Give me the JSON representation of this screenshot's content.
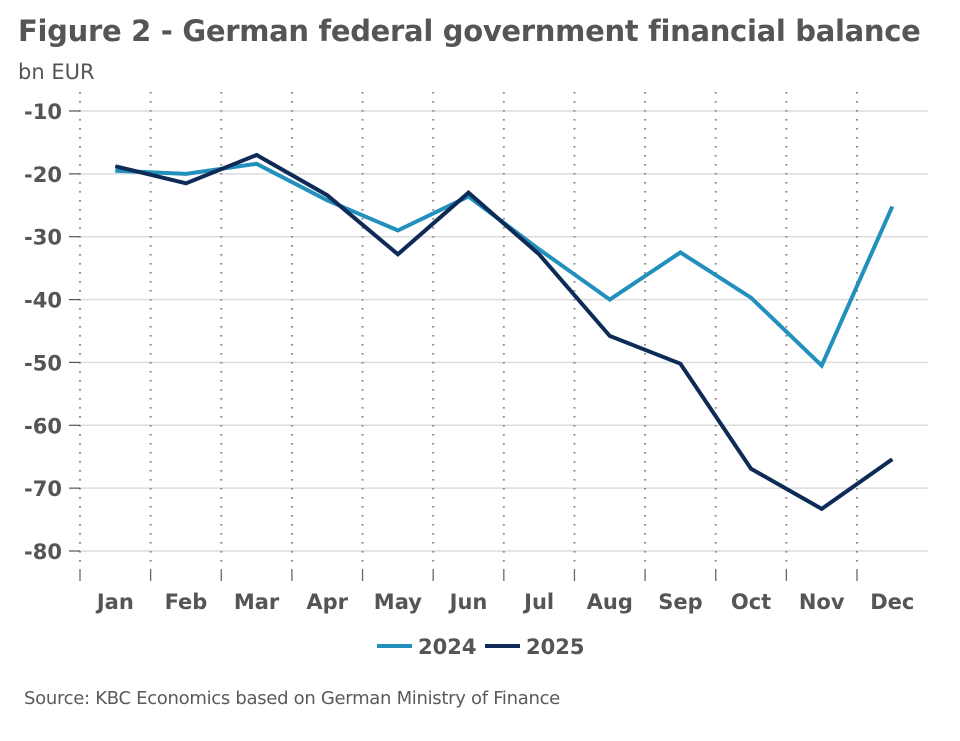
{
  "chart_data": {
    "type": "line",
    "title": "Figure 2 - German federal government financial balance",
    "subtitle": "bn EUR",
    "xlabel": "",
    "ylabel": "bn EUR",
    "categories": [
      "Jan",
      "Feb",
      "Mar",
      "Apr",
      "May",
      "Jun",
      "Jul",
      "Aug",
      "Sep",
      "Oct",
      "Nov",
      "Dec"
    ],
    "yticks": [
      -10,
      -20,
      -30,
      -40,
      -50,
      -60,
      -70,
      -80
    ],
    "ytick_labels": [
      "-10",
      "-20",
      "-30",
      "-40",
      "-50",
      "-60",
      "-70",
      "-80"
    ],
    "ylim": [
      -80,
      -10
    ],
    "grid": "horizontal solid, vertical dotted",
    "legend_position": "bottom-center",
    "series": [
      {
        "name": "2024",
        "color": "#2190bd",
        "values": [
          -19.5,
          -20.0,
          -18.4,
          -24.2,
          -29.0,
          -23.6,
          -32.0,
          -40.0,
          -32.5,
          -39.7,
          -50.5,
          -25.2
        ]
      },
      {
        "name": "2025",
        "color": "#0d2b56",
        "values": [
          -18.8,
          -21.5,
          -17.0,
          -23.4,
          -32.8,
          -23.0,
          -32.8,
          -45.8,
          -50.2,
          -66.9,
          -73.3,
          -65.4
        ]
      }
    ],
    "source": "Source: KBC Economics based on German Ministry of Finance"
  }
}
